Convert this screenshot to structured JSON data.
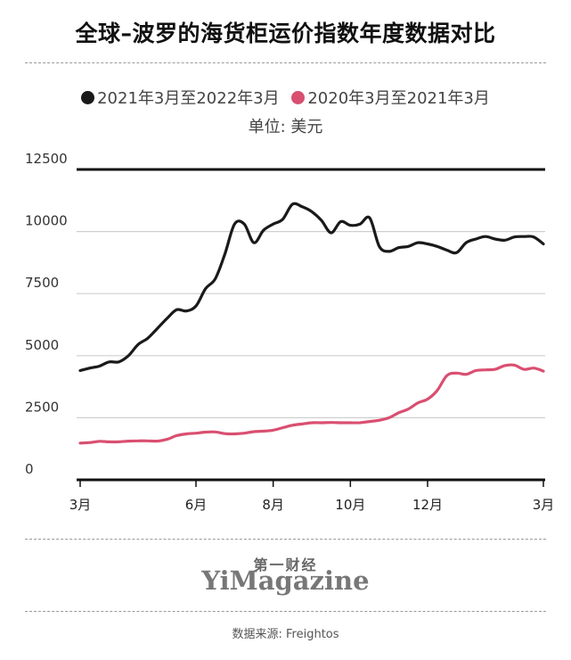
{
  "title": "全球–波罗的海货柜运价指数年度数据对比",
  "legend": [
    {
      "label": "2021年3月至2022年3月",
      "color": "#1a1a1a"
    },
    {
      "label": "2020年3月至2021年3月",
      "color": "#d94f70"
    }
  ],
  "unit_label": "单位: 美元",
  "brand": {
    "cn": "第一财经",
    "en": "YiMagazine"
  },
  "source": "数据来源: Freightos",
  "chart_data": {
    "type": "line",
    "title": "全球–波罗的海货柜运价指数年度数据对比",
    "ylabel": "单位: 美元",
    "xlabel": "",
    "ylim": [
      0,
      12500
    ],
    "y_ticks": [
      "0",
      "2500",
      "5000",
      "7500",
      "10000",
      "12500"
    ],
    "y_tick_values": [
      0,
      2500,
      5000,
      7500,
      10000,
      12500
    ],
    "x_ticks": [
      "3月",
      "6月",
      "8月",
      "10月",
      "12月",
      "3月"
    ],
    "x_tick_positions": [
      0,
      3,
      5,
      7,
      9,
      12
    ],
    "xlim": [
      0,
      12
    ],
    "grid": "horizontal",
    "legend_position": "top-center",
    "series": [
      {
        "name": "2021年3月至2022年3月",
        "color": "#1a1a1a",
        "x": [
          0,
          0.25,
          0.5,
          0.75,
          1.0,
          1.25,
          1.5,
          1.75,
          2.0,
          2.25,
          2.5,
          2.75,
          3.0,
          3.25,
          3.5,
          3.75,
          4.0,
          4.25,
          4.5,
          4.75,
          5.0,
          5.25,
          5.5,
          5.75,
          6.0,
          6.25,
          6.5,
          6.75,
          7.0,
          7.25,
          7.5,
          7.75,
          8.0,
          8.25,
          8.5,
          8.75,
          9.0,
          9.25,
          9.5,
          9.75,
          10.0,
          10.25,
          10.5,
          10.75,
          11.0,
          11.25,
          11.5,
          11.75,
          12.0
        ],
        "values": [
          4400,
          4500,
          4580,
          4750,
          4750,
          5000,
          5450,
          5700,
          6100,
          6500,
          6850,
          6800,
          7000,
          7700,
          8100,
          9100,
          10300,
          10300,
          9550,
          10050,
          10300,
          10500,
          11100,
          11000,
          10800,
          10450,
          9950,
          10400,
          10250,
          10300,
          10550,
          9400,
          9200,
          9350,
          9400,
          9550,
          9500,
          9400,
          9250,
          9150,
          9550,
          9700,
          9800,
          9700,
          9650,
          9780,
          9800,
          9780,
          9500
        ]
      },
      {
        "name": "2020年3月至2021年3月",
        "color": "#d94f70",
        "x": [
          0,
          0.25,
          0.5,
          0.75,
          1.0,
          1.25,
          1.5,
          1.75,
          2.0,
          2.25,
          2.5,
          2.75,
          3.0,
          3.25,
          3.5,
          3.75,
          4.0,
          4.25,
          4.5,
          4.75,
          5.0,
          5.25,
          5.5,
          5.75,
          6.0,
          6.25,
          6.5,
          6.75,
          7.0,
          7.25,
          7.5,
          7.75,
          8.0,
          8.25,
          8.5,
          8.75,
          9.0,
          9.25,
          9.5,
          9.75,
          10.0,
          10.25,
          10.5,
          10.75,
          11.0,
          11.25,
          11.5,
          11.75,
          12.0
        ],
        "values": [
          1480,
          1500,
          1550,
          1530,
          1530,
          1560,
          1570,
          1570,
          1560,
          1630,
          1780,
          1850,
          1880,
          1920,
          1930,
          1860,
          1850,
          1880,
          1940,
          1960,
          2000,
          2100,
          2200,
          2250,
          2300,
          2300,
          2310,
          2300,
          2300,
          2300,
          2350,
          2400,
          2500,
          2700,
          2850,
          3100,
          3250,
          3600,
          4200,
          4300,
          4250,
          4400,
          4430,
          4450,
          4600,
          4620,
          4450,
          4500,
          4380
        ]
      }
    ]
  }
}
